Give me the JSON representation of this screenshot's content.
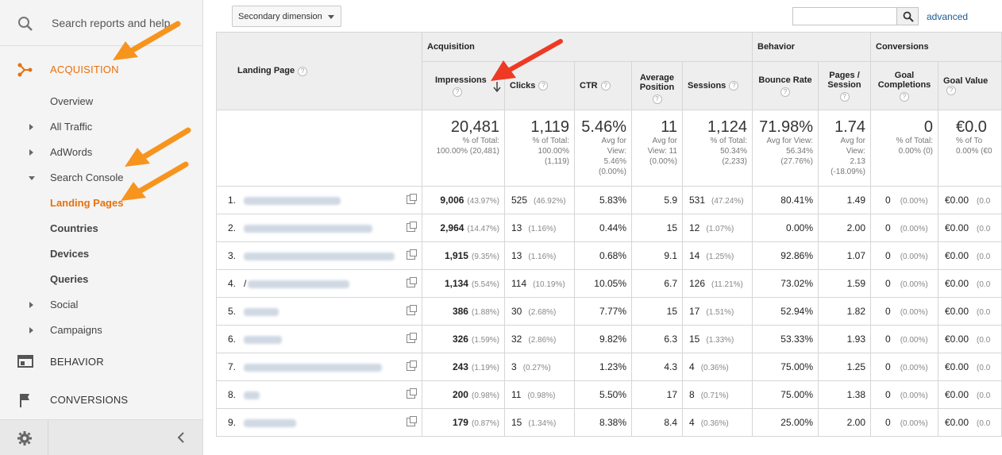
{
  "sidebar": {
    "search_placeholder": "Search reports and help",
    "sections": {
      "acquisition": "ACQUISITION",
      "behavior": "BEHAVIOR",
      "conversions": "CONVERSIONS"
    },
    "items": [
      {
        "label": "Overview"
      },
      {
        "label": "All Traffic"
      },
      {
        "label": "AdWords"
      },
      {
        "label": "Search Console"
      },
      {
        "label": "Landing Pages"
      },
      {
        "label": "Countries"
      },
      {
        "label": "Devices"
      },
      {
        "label": "Queries"
      },
      {
        "label": "Social"
      },
      {
        "label": "Campaigns"
      }
    ]
  },
  "toolbar": {
    "secondary_dimension": "Secondary dimension",
    "advanced": "advanced"
  },
  "table": {
    "landing_page_header": "Landing Page",
    "groups": {
      "acquisition": "Acquisition",
      "behavior": "Behavior",
      "conversions": "Conversions"
    },
    "columns": {
      "impressions": "Impressions",
      "clicks": "Clicks",
      "ctr": "CTR",
      "avg_position": "Average Position",
      "sessions": "Sessions",
      "bounce_rate": "Bounce Rate",
      "pages_session": "Pages / Session",
      "goal_completions": "Goal Completions",
      "goal_value": "Goal Value"
    },
    "totals": {
      "impressions": {
        "big": "20,481",
        "l1": "% of Total:",
        "l2": "100.00% (20,481)"
      },
      "clicks": {
        "big": "1,119",
        "l1": "% of Total:",
        "l2": "100.00%",
        "l3": "(1,119)"
      },
      "ctr": {
        "big": "5.46%",
        "l1": "Avg for",
        "l2": "View:",
        "l3": "5.46%",
        "l4": "(0.00%)"
      },
      "avg_position": {
        "big": "11",
        "l1": "Avg for",
        "l2": "View: 11",
        "l3": "(0.00%)"
      },
      "sessions": {
        "big": "1,124",
        "l1": "% of Total:",
        "l2": "50.34%",
        "l3": "(2,233)"
      },
      "bounce_rate": {
        "big": "71.98%",
        "l1": "Avg for View:",
        "l2": "56.34%",
        "l3": "(27.76%)"
      },
      "pages_session": {
        "big": "1.74",
        "l1": "Avg for",
        "l2": "View:",
        "l3": "2.13",
        "l4": "(-18.09%)"
      },
      "goal_completions": {
        "big": "0",
        "l1": "% of Total:",
        "l2": "0.00% (0)"
      },
      "goal_value": {
        "big": "€0.0",
        "l1": "% of To",
        "l2": "0.00% (€0"
      }
    },
    "rows": [
      {
        "n": "1.",
        "imp": "9,006",
        "impp": "(43.97%)",
        "cl": "525",
        "clp": "(46.92%)",
        "ctr": "5.83%",
        "pos": "5.9",
        "ses": "531",
        "sesp": "(47.24%)",
        "br": "80.41%",
        "ps": "1.49",
        "gc": "0",
        "gcp": "(0.00%)",
        "gv": "€0.00",
        "gvp": "(0.0"
      },
      {
        "n": "2.",
        "imp": "2,964",
        "impp": "(14.47%)",
        "cl": "13",
        "clp": "(1.16%)",
        "ctr": "0.44%",
        "pos": "15",
        "ses": "12",
        "sesp": "(1.07%)",
        "br": "0.00%",
        "ps": "2.00",
        "gc": "0",
        "gcp": "(0.00%)",
        "gv": "€0.00",
        "gvp": "(0.0"
      },
      {
        "n": "3.",
        "imp": "1,915",
        "impp": "(9.35%)",
        "cl": "13",
        "clp": "(1.16%)",
        "ctr": "0.68%",
        "pos": "9.1",
        "ses": "14",
        "sesp": "(1.25%)",
        "br": "92.86%",
        "ps": "1.07",
        "gc": "0",
        "gcp": "(0.00%)",
        "gv": "€0.00",
        "gvp": "(0.0"
      },
      {
        "n": "4.",
        "lp_prefix": "/",
        "imp": "1,134",
        "impp": "(5.54%)",
        "cl": "114",
        "clp": "(10.19%)",
        "ctr": "10.05%",
        "pos": "6.7",
        "ses": "126",
        "sesp": "(11.21%)",
        "br": "73.02%",
        "ps": "1.59",
        "gc": "0",
        "gcp": "(0.00%)",
        "gv": "€0.00",
        "gvp": "(0.0"
      },
      {
        "n": "5.",
        "imp": "386",
        "impp": "(1.88%)",
        "cl": "30",
        "clp": "(2.68%)",
        "ctr": "7.77%",
        "pos": "15",
        "ses": "17",
        "sesp": "(1.51%)",
        "br": "52.94%",
        "ps": "1.82",
        "gc": "0",
        "gcp": "(0.00%)",
        "gv": "€0.00",
        "gvp": "(0.0"
      },
      {
        "n": "6.",
        "imp": "326",
        "impp": "(1.59%)",
        "cl": "32",
        "clp": "(2.86%)",
        "ctr": "9.82%",
        "pos": "6.3",
        "ses": "15",
        "sesp": "(1.33%)",
        "br": "53.33%",
        "ps": "1.93",
        "gc": "0",
        "gcp": "(0.00%)",
        "gv": "€0.00",
        "gvp": "(0.0"
      },
      {
        "n": "7.",
        "imp": "243",
        "impp": "(1.19%)",
        "cl": "3",
        "clp": "(0.27%)",
        "ctr": "1.23%",
        "pos": "4.3",
        "ses": "4",
        "sesp": "(0.36%)",
        "br": "75.00%",
        "ps": "1.25",
        "gc": "0",
        "gcp": "(0.00%)",
        "gv": "€0.00",
        "gvp": "(0.0"
      },
      {
        "n": "8.",
        "imp": "200",
        "impp": "(0.98%)",
        "cl": "11",
        "clp": "(0.98%)",
        "ctr": "5.50%",
        "pos": "17",
        "ses": "8",
        "sesp": "(0.71%)",
        "br": "75.00%",
        "ps": "1.38",
        "gc": "0",
        "gcp": "(0.00%)",
        "gv": "€0.00",
        "gvp": "(0.0"
      },
      {
        "n": "9.",
        "imp": "179",
        "impp": "(0.87%)",
        "cl": "15",
        "clp": "(1.34%)",
        "ctr": "8.38%",
        "pos": "8.4",
        "ses": "4",
        "sesp": "(0.36%)",
        "br": "25.00%",
        "ps": "2.00",
        "gc": "0",
        "gcp": "(0.00%)",
        "gv": "€0.00",
        "gvp": "(0.0"
      }
    ]
  },
  "colors": {
    "accent": "#e8710a",
    "link": "#1a5a96",
    "annotation_orange": "#f7941d",
    "annotation_red": "#ee3a24"
  },
  "icons": [
    "search-icon",
    "acquisition-icon",
    "behavior-icon",
    "conversions-flag-icon",
    "gear-icon",
    "collapse-chevron-icon",
    "sort-down-arrow-icon",
    "open-link-icon",
    "help-icon"
  ]
}
